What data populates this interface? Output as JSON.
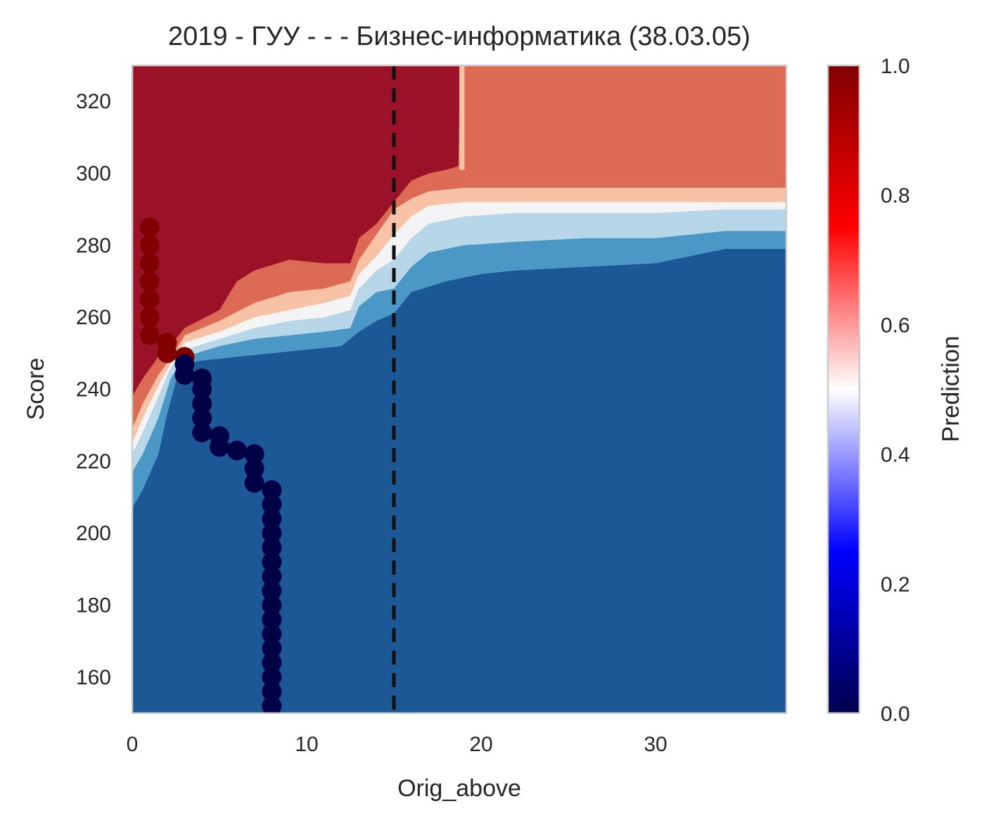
{
  "chart_data": {
    "type": "contour",
    "title": "2019 - ГУУ - - - Бизнес-информатика (38.03.05)",
    "xlabel": "Orig_above",
    "ylabel": "Score",
    "xlim": [
      0,
      37.5
    ],
    "ylim": [
      150,
      330
    ],
    "xticks": [
      0,
      10,
      20,
      30
    ],
    "yticks": [
      160,
      180,
      200,
      220,
      240,
      260,
      280,
      300,
      320
    ],
    "grid": false,
    "reference_line": {
      "axis": "x",
      "value": 15,
      "style": "dashed",
      "color": "#111111"
    },
    "colorbar": {
      "label": "Prediction",
      "range": [
        0,
        1
      ],
      "ticks": [
        "0.0",
        "0.2",
        "0.4",
        "0.6",
        "0.8",
        "1.0"
      ],
      "colormap": "seismic"
    },
    "contour_levels": [
      {
        "level": 0.1,
        "color": "#1c5796"
      },
      {
        "level": 0.3,
        "color": "#4b98c6"
      },
      {
        "level": 0.45,
        "color": "#b7d6e8"
      },
      {
        "level": 0.55,
        "color": "#f4f4f4"
      },
      {
        "level": 0.65,
        "color": "#f8c2a6"
      },
      {
        "level": 0.8,
        "color": "#dc6a55"
      },
      {
        "level": 0.95,
        "color": "#9b1128"
      }
    ],
    "series": [
      {
        "points": [
          [
            1,
            285
          ],
          [
            1,
            280
          ],
          [
            1,
            275
          ],
          [
            1,
            270
          ],
          [
            1,
            265
          ],
          [
            1,
            260
          ],
          [
            1,
            255
          ],
          [
            2,
            253
          ],
          [
            2,
            250
          ],
          [
            3,
            249
          ]
        ],
        "prediction": 1.0,
        "color": "#800000"
      },
      {
        "points": [
          [
            3,
            247
          ],
          [
            3,
            244
          ],
          [
            4,
            243
          ],
          [
            4,
            240
          ],
          [
            4,
            236
          ],
          [
            4,
            232
          ],
          [
            4,
            228
          ],
          [
            5,
            227
          ],
          [
            5,
            224
          ],
          [
            6,
            223
          ],
          [
            7,
            222
          ],
          [
            7,
            218
          ],
          [
            7,
            214
          ],
          [
            8,
            212
          ],
          [
            8,
            208
          ],
          [
            8,
            204
          ],
          [
            8,
            200
          ],
          [
            8,
            196
          ],
          [
            8,
            192
          ],
          [
            8,
            188
          ],
          [
            8,
            184
          ],
          [
            8,
            180
          ],
          [
            8,
            176
          ],
          [
            8,
            172
          ],
          [
            8,
            168
          ],
          [
            8,
            164
          ],
          [
            8,
            160
          ],
          [
            8,
            156
          ],
          [
            8,
            152
          ]
        ],
        "prediction": 0.0,
        "color": "#000046"
      }
    ]
  }
}
